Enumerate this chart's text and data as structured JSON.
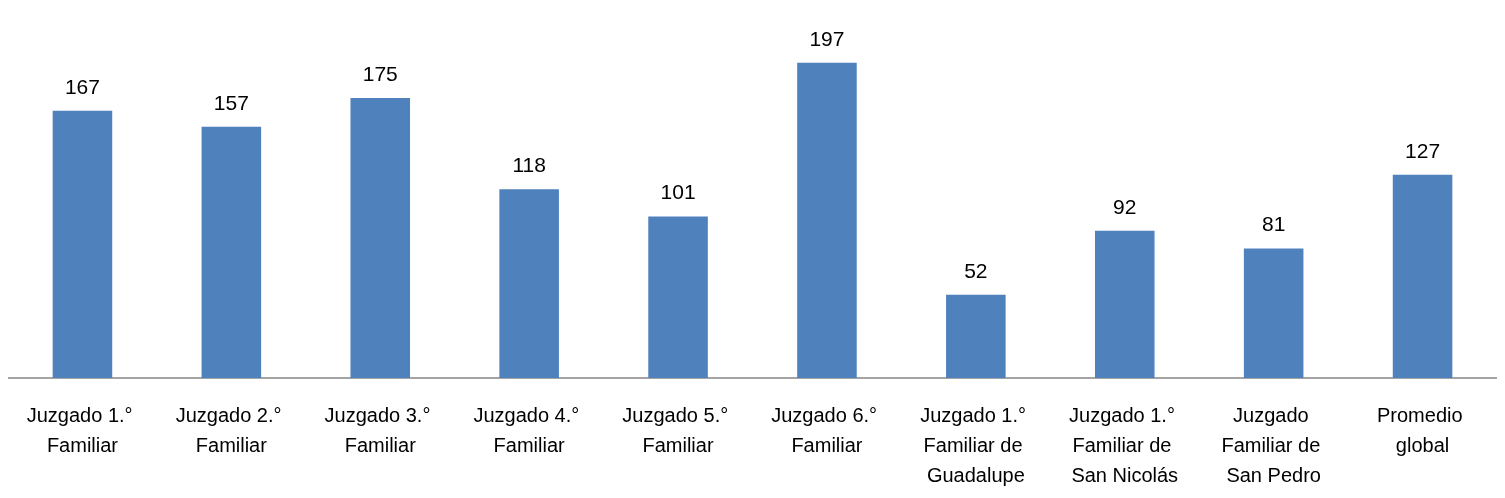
{
  "chart_data": {
    "type": "bar",
    "categories": [
      "Juzgado 1.° Familiar",
      "Juzgado 2.° Familiar",
      "Juzgado 3.° Familiar",
      "Juzgado 4.° Familiar",
      "Juzgado 5.° Familiar",
      "Juzgado 6.° Familiar",
      "Juzgado 1.° Familiar de Guadalupe",
      "Juzgado 1.° Familiar de San Nicolás",
      "Juzgado Familiar de San Pedro",
      "Promedio global"
    ],
    "values": [
      167,
      157,
      175,
      118,
      101,
      197,
      52,
      92,
      81,
      127
    ],
    "color": "#4f81bd",
    "data_labels": true
  }
}
